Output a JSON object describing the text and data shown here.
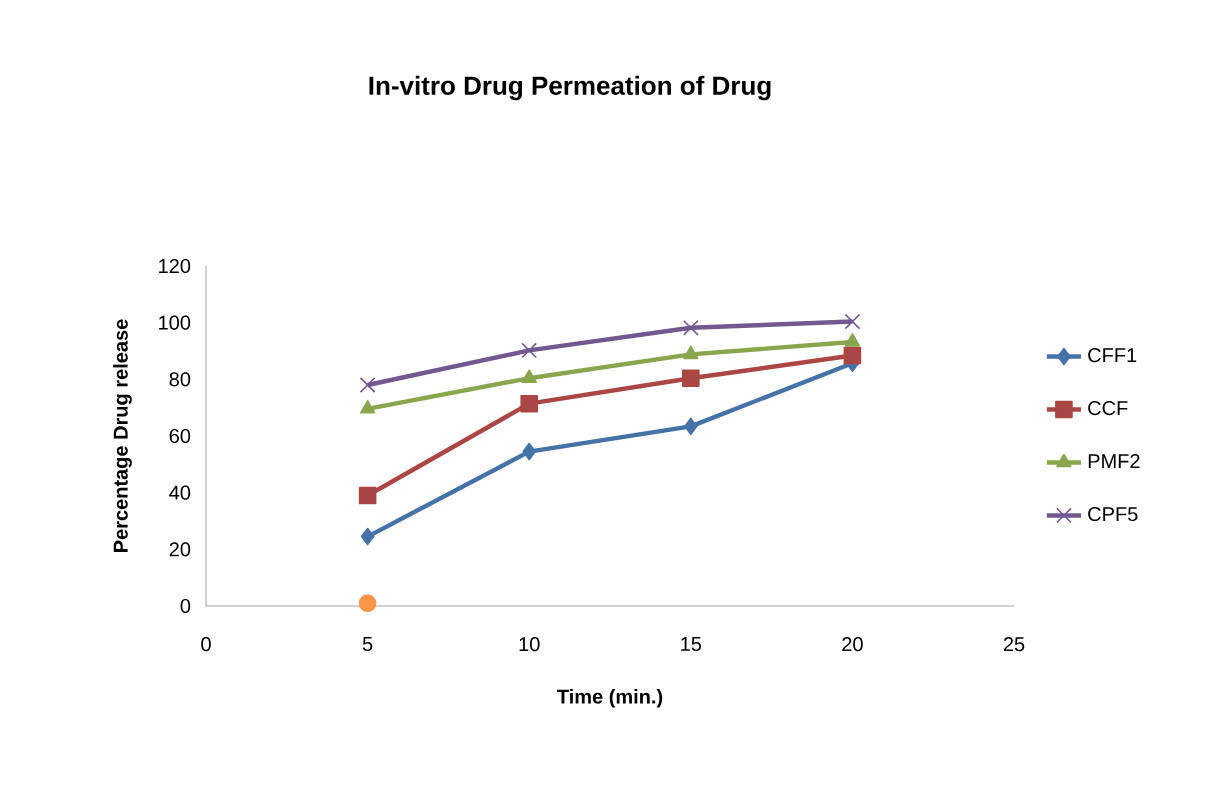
{
  "chart_data": {
    "type": "line",
    "title": "In-vitro Drug Permeation of Drug",
    "xlabel": "Time (min.)",
    "ylabel": "Percentage Drug release",
    "x": [
      5,
      10,
      15,
      20
    ],
    "series": [
      {
        "name": "CFF1",
        "color": "#4572a7",
        "marker": "diamond",
        "values": [
          24.5,
          54.5,
          63.4,
          85.7
        ]
      },
      {
        "name": "CCF",
        "color": "#aa4643",
        "marker": "square",
        "values": [
          39,
          71.4,
          80.4,
          88.4
        ]
      },
      {
        "name": "PMF2",
        "color": "#89a54e",
        "marker": "triangle",
        "values": [
          69.6,
          80.4,
          88.8,
          93.2
        ]
      },
      {
        "name": "CPF5",
        "color": "#71588f",
        "marker": "cross",
        "values": [
          78,
          90.2,
          98.2,
          100.4
        ]
      },
      {
        "type": "scatter",
        "color": "#f79646",
        "marker": "circle",
        "x": [
          5
        ],
        "values": [
          1
        ]
      }
    ],
    "xlim": [
      0,
      25
    ],
    "ylim": [
      0,
      120
    ],
    "xticks": [
      0,
      5,
      10,
      15,
      20,
      25
    ],
    "yticks": [
      0,
      20,
      40,
      60,
      80,
      100,
      120
    ],
    "grid": false,
    "legend": "right",
    "line_style": "solid"
  }
}
